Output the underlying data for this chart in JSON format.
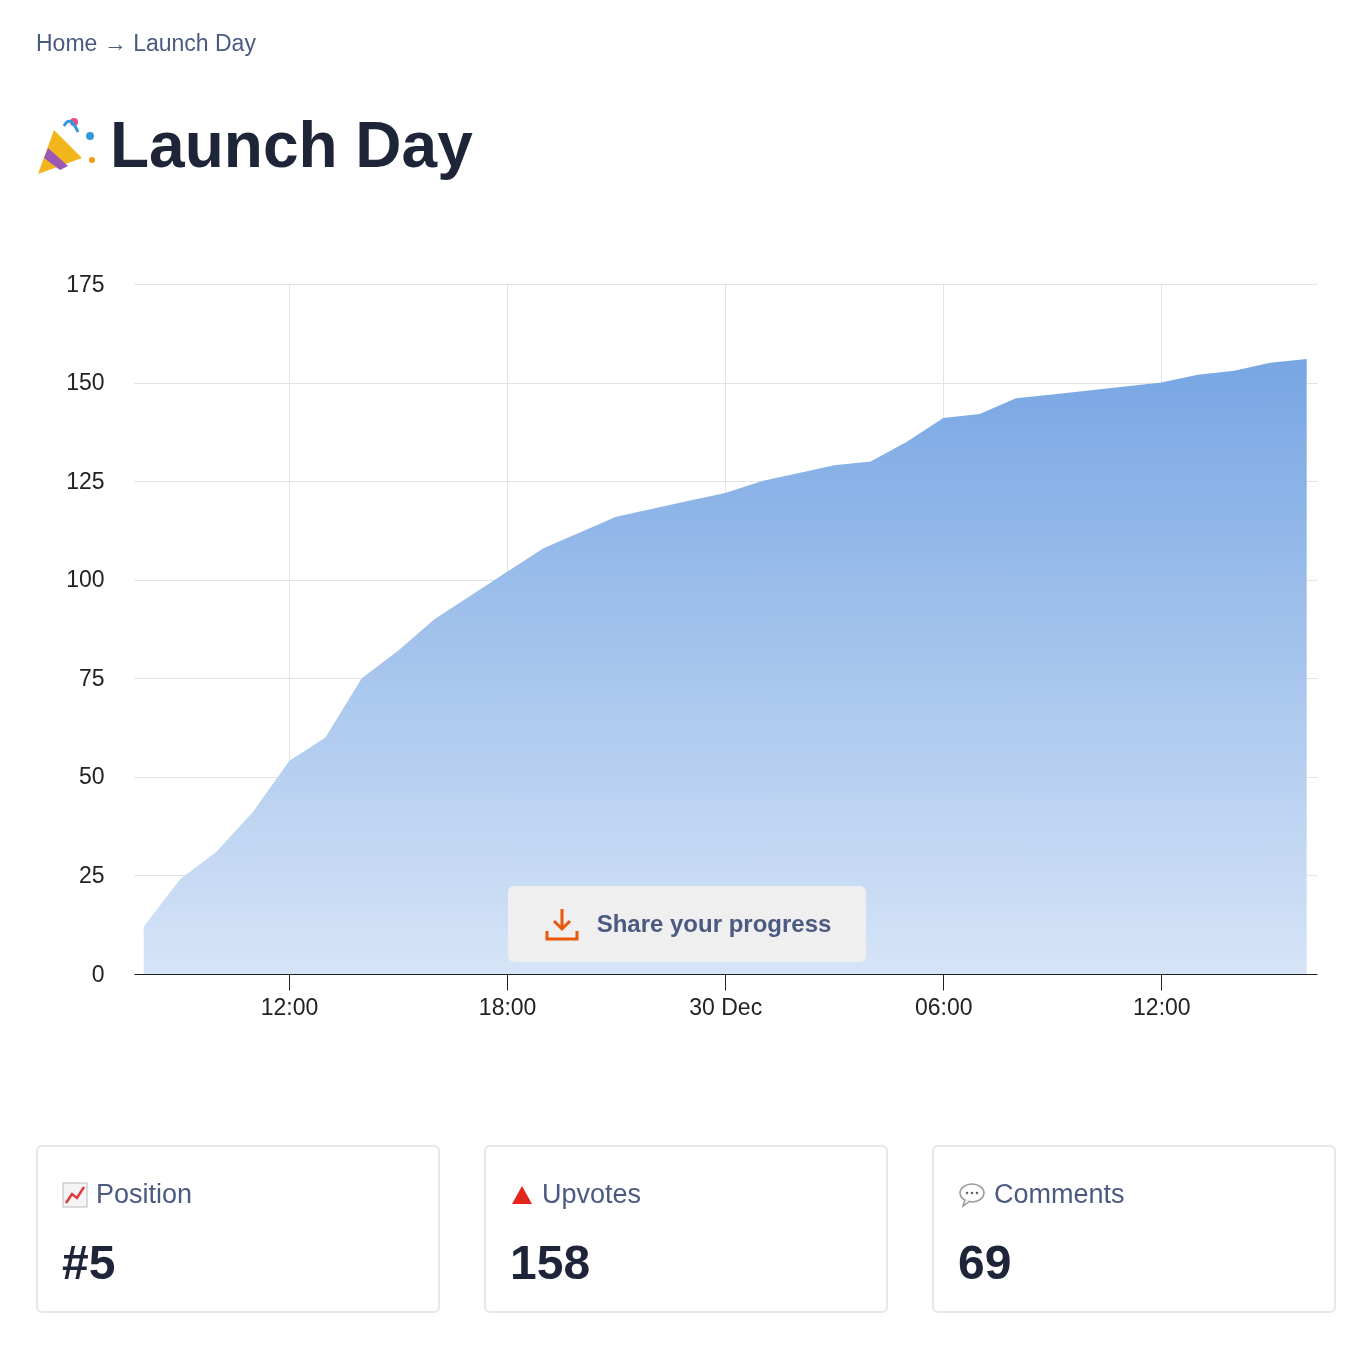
{
  "chart_data": [
    {
      "type": "area",
      "title": "Launch Day",
      "annotations": [
        "Home → Launch Day",
        "Share your progress"
      ],
      "color": "#77a6e3",
      "grid": true,
      "x": [
        "--12-29T08:00",
        "--12-29T09:00",
        "--12-29T10:00",
        "--12-29T11:00",
        "--12-29T12:00",
        "--12-29T13:00",
        "--12-29T14:00",
        "--12-29T15:00",
        "--12-29T16:00",
        "--12-29T17:00",
        "--12-29T18:00",
        "--12-29T19:00",
        "--12-29T20:00",
        "--12-29T21:00",
        "--12-29T22:00",
        "--12-29T23:00",
        "--12-30T00:00",
        "--12-30T01:00",
        "--12-30T02:00",
        "--12-30T03:00",
        "--12-30T04:00",
        "--12-30T05:00",
        "--12-30T06:00",
        "--12-30T07:00",
        "--12-30T08:00",
        "--12-30T09:00",
        "--12-30T10:00",
        "--12-30T11:00",
        "--12-30T12:00",
        "--12-30T13:00",
        "--12-30T14:00",
        "--12-30T15:00",
        "--12-30T16:00"
      ],
      "values": [
        12,
        24,
        31,
        41,
        54,
        60,
        75,
        82,
        90,
        96,
        102,
        108,
        112,
        116,
        118,
        120,
        122,
        125,
        127,
        129,
        130,
        135,
        141,
        142,
        146,
        147,
        148,
        149,
        150,
        152,
        153,
        155,
        156
      ],
      "xlim": [
        "--12-29T07:44",
        "--12-30T16:17"
      ],
      "xticks": [
        {
          "value": "--12-29T12:00",
          "label": "12:00"
        },
        {
          "value": "--12-29T18:00",
          "label": "18:00"
        },
        {
          "value": "--12-30T00:00",
          "label": "30 Dec"
        },
        {
          "value": "--12-30T06:00",
          "label": "06:00"
        },
        {
          "value": "--12-30T12:00",
          "label": "12:00"
        }
      ],
      "ylim": [
        0,
        175
      ],
      "yticks": [
        0,
        25,
        50,
        75,
        100,
        125,
        150,
        175
      ]
    },
    {
      "type": "other",
      "title": "Position",
      "annotations": [
        "#5"
      ]
    },
    {
      "type": "other",
      "title": "Upvotes",
      "annotations": [
        "158"
      ]
    },
    {
      "type": "other",
      "title": "Comments",
      "annotations": [
        "69"
      ]
    }
  ]
}
